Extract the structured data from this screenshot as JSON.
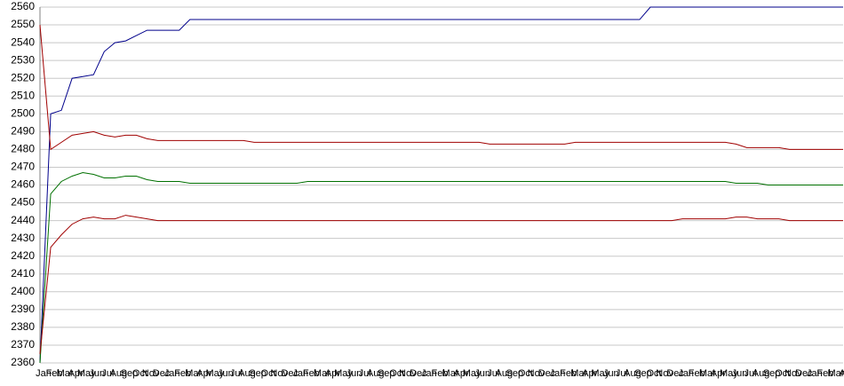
{
  "chart_data": {
    "type": "line",
    "categories": [
      "Jan",
      "Feb",
      "Mar",
      "Apr",
      "May",
      "Jun",
      "Jul",
      "Aug",
      "Sep",
      "Oct",
      "Nov",
      "Dec",
      "Jan",
      "Feb",
      "Mar",
      "Apr",
      "May",
      "Jun",
      "Jul",
      "Aug",
      "Sep",
      "Oct",
      "Nov",
      "Dec",
      "Jan",
      "Feb",
      "Mar",
      "Apr",
      "May",
      "Jun",
      "Jul",
      "Aug",
      "Sep",
      "Oct",
      "Nov",
      "Dec",
      "Jan",
      "Feb",
      "Mar",
      "Apr",
      "May",
      "Jun",
      "Jul",
      "Aug",
      "Sep",
      "Oct",
      "Nov",
      "Dec",
      "Jan",
      "Feb",
      "Mar",
      "Apr",
      "May",
      "Jun",
      "Jul",
      "Aug",
      "Sep",
      "Oct",
      "Nov",
      "Dec",
      "Jan",
      "Feb",
      "Mar",
      "Apr",
      "May",
      "Jun",
      "Jul",
      "Aug",
      "Sep",
      "Oct",
      "Nov",
      "Dec",
      "Jan",
      "Feb",
      "Mar",
      "Apr"
    ],
    "series": [
      {
        "color": "#00008b",
        "values": [
          2360,
          2500,
          2502,
          2520,
          2521,
          2522,
          2535,
          2540,
          2541,
          2544,
          2547,
          2547,
          2547,
          2547,
          2553,
          2553,
          2553,
          2553,
          2553,
          2553,
          2553,
          2553,
          2553,
          2553,
          2553,
          2553,
          2553,
          2553,
          2553,
          2553,
          2553,
          2553,
          2553,
          2553,
          2553,
          2553,
          2553,
          2553,
          2553,
          2553,
          2553,
          2553,
          2553,
          2553,
          2553,
          2553,
          2553,
          2553,
          2553,
          2553,
          2553,
          2553,
          2553,
          2553,
          2553,
          2553,
          2553,
          2560,
          2560,
          2560,
          2560,
          2560,
          2560,
          2560,
          2560,
          2560,
          2560,
          2560,
          2560,
          2560,
          2560,
          2560,
          2560,
          2560,
          2560,
          2560
        ]
      },
      {
        "color": "#a00000",
        "values": [
          2550,
          2480,
          2484,
          2488,
          2489,
          2490,
          2488,
          2487,
          2488,
          2488,
          2486,
          2485,
          2485,
          2485,
          2485,
          2485,
          2485,
          2485,
          2485,
          2485,
          2484,
          2484,
          2484,
          2484,
          2484,
          2484,
          2484,
          2484,
          2484,
          2484,
          2484,
          2484,
          2484,
          2484,
          2484,
          2484,
          2484,
          2484,
          2484,
          2484,
          2484,
          2484,
          2483,
          2483,
          2483,
          2483,
          2483,
          2483,
          2483,
          2483,
          2484,
          2484,
          2484,
          2484,
          2484,
          2484,
          2484,
          2484,
          2484,
          2484,
          2484,
          2484,
          2484,
          2484,
          2484,
          2483,
          2481,
          2481,
          2481,
          2481,
          2480,
          2480,
          2480,
          2480,
          2480,
          2480
        ]
      },
      {
        "color": "#007000",
        "values": [
          2360,
          2455,
          2462,
          2465,
          2467,
          2466,
          2464,
          2464,
          2465,
          2465,
          2463,
          2462,
          2462,
          2462,
          2461,
          2461,
          2461,
          2461,
          2461,
          2461,
          2461,
          2461,
          2461,
          2461,
          2461,
          2462,
          2462,
          2462,
          2462,
          2462,
          2462,
          2462,
          2462,
          2462,
          2462,
          2462,
          2462,
          2462,
          2462,
          2462,
          2462,
          2462,
          2462,
          2462,
          2462,
          2462,
          2462,
          2462,
          2462,
          2462,
          2462,
          2462,
          2462,
          2462,
          2462,
          2462,
          2462,
          2462,
          2462,
          2462,
          2462,
          2462,
          2462,
          2462,
          2462,
          2461,
          2461,
          2461,
          2460,
          2460,
          2460,
          2460,
          2460,
          2460,
          2460,
          2460
        ]
      },
      {
        "color": "#a00000",
        "values": [
          2365,
          2425,
          2432,
          2438,
          2441,
          2442,
          2441,
          2441,
          2443,
          2442,
          2441,
          2440,
          2440,
          2440,
          2440,
          2440,
          2440,
          2440,
          2440,
          2440,
          2440,
          2440,
          2440,
          2440,
          2440,
          2440,
          2440,
          2440,
          2440,
          2440,
          2440,
          2440,
          2440,
          2440,
          2440,
          2440,
          2440,
          2440,
          2440,
          2440,
          2440,
          2440,
          2440,
          2440,
          2440,
          2440,
          2440,
          2440,
          2440,
          2440,
          2440,
          2440,
          2440,
          2440,
          2440,
          2440,
          2440,
          2440,
          2440,
          2440,
          2441,
          2441,
          2441,
          2441,
          2441,
          2442,
          2442,
          2441,
          2441,
          2441,
          2440,
          2440,
          2440,
          2440,
          2440,
          2440
        ]
      }
    ],
    "ylim": [
      2360,
      2560
    ],
    "yticks": [
      2360,
      2370,
      2380,
      2390,
      2400,
      2410,
      2420,
      2430,
      2440,
      2450,
      2460,
      2470,
      2480,
      2490,
      2500,
      2510,
      2520,
      2530,
      2540,
      2550,
      2560
    ],
    "grid": true
  }
}
